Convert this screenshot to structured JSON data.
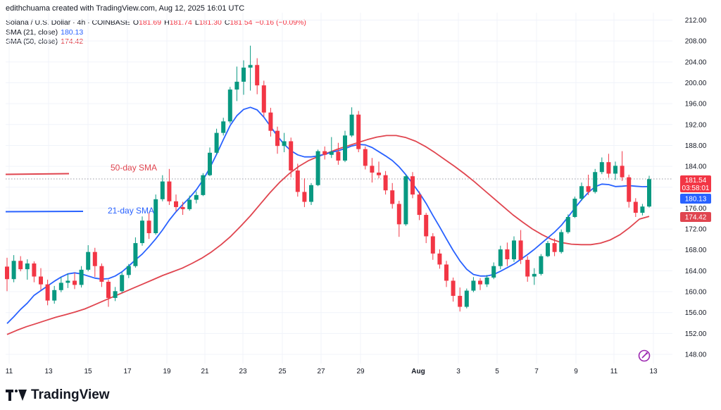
{
  "header": {
    "text": "edithchuama created with TradingView.com, Aug 12, 2025 16:01 UTC"
  },
  "legend": {
    "symbol": "Solana / U.S. Dollar · 4h · COINBASE",
    "o_label": "O",
    "o": "181.69",
    "h_label": "H",
    "h": "181.74",
    "l_label": "L",
    "l": "181.30",
    "c_label": "C",
    "c": "181.54",
    "change": "−0.16 (−0.09%)",
    "sma21_label": "SMA (21, close)",
    "sma21_value": "180.13",
    "sma50_label": "SMA (50, close)",
    "sma50_value": "174.42"
  },
  "annotations": {
    "sma50": "50-day SMA",
    "sma21": "21-day SMA"
  },
  "price_tags": {
    "last": "181.54",
    "countdown": "03:58:01",
    "sma21": "180.13",
    "sma50": "174.42"
  },
  "brand": {
    "name": "TradingView"
  },
  "colors": {
    "up": "#089981",
    "down": "#f23645",
    "sma21": "#2962ff",
    "sma50": "#e0454f",
    "grid": "#f0f3fa"
  },
  "chart_data": {
    "type": "candlestick",
    "symbol": "SOL/USD",
    "timeframe": "4h",
    "y_ticks": [
      148,
      152,
      156,
      160,
      164,
      168,
      172,
      176,
      180,
      184,
      188,
      192,
      196,
      200,
      204,
      208,
      212
    ],
    "x_ticks": [
      "11",
      "13",
      "15",
      "17",
      "19",
      "21",
      "23",
      "25",
      "27",
      "29",
      "Aug",
      "3",
      "5",
      "7",
      "9",
      "11",
      "13"
    ],
    "ylim": [
      145.5,
      214
    ],
    "grid": true,
    "last_price": 181.54,
    "candles": [
      [
        164.8,
        166.5,
        160.1,
        162.4
      ],
      [
        162.4,
        167,
        161.8,
        165.9
      ],
      [
        165.9,
        166.8,
        163.9,
        164.3
      ],
      [
        164.3,
        166.2,
        162.3,
        165.4
      ],
      [
        165.4,
        165.8,
        161.8,
        162.9
      ],
      [
        162.9,
        164.5,
        160.3,
        161.4
      ],
      [
        161.4,
        162.3,
        157.4,
        158.3
      ],
      [
        158.3,
        161.1,
        157.7,
        160.3
      ],
      [
        160.3,
        162.8,
        159.9,
        161.7
      ],
      [
        161.7,
        163.5,
        160.7,
        162.1
      ],
      [
        162.1,
        163.6,
        160.5,
        161.3
      ],
      [
        161.3,
        164.9,
        160.8,
        164.2
      ],
      [
        164.2,
        168.9,
        163.9,
        167.6
      ],
      [
        167.6,
        168.4,
        162.8,
        164.9
      ],
      [
        164.9,
        165.4,
        160.9,
        161.9
      ],
      [
        161.9,
        162.3,
        157.1,
        158.8
      ],
      [
        158.8,
        160.9,
        158.2,
        160.1
      ],
      [
        160.1,
        163.7,
        159.8,
        163.2
      ],
      [
        163.2,
        165.3,
        162.6,
        164.9
      ],
      [
        164.9,
        170.4,
        164.6,
        169.3
      ],
      [
        169.3,
        174.4,
        168.8,
        173.6
      ],
      [
        173.6,
        175.2,
        170.1,
        171.2
      ],
      [
        171.2,
        178.6,
        170.9,
        177.7
      ],
      [
        177.7,
        182.3,
        177.3,
        181.1
      ],
      [
        181.1,
        183.5,
        176.6,
        177.3
      ],
      [
        177.3,
        178.6,
        175.4,
        176.2
      ],
      [
        176.2,
        177.2,
        174.7,
        175.8
      ],
      [
        175.8,
        178.4,
        175.5,
        177.6
      ],
      [
        177.6,
        179.2,
        176.9,
        178.5
      ],
      [
        178.5,
        182.7,
        178.3,
        182.3
      ],
      [
        182.3,
        187.6,
        182.1,
        186.6
      ],
      [
        186.6,
        191.2,
        186.3,
        190.4
      ],
      [
        190.4,
        193.3,
        189.9,
        192.6
      ],
      [
        192.6,
        199.2,
        192.2,
        198.7
      ],
      [
        198.7,
        203.1,
        196.5,
        200.2
      ],
      [
        200.2,
        204.3,
        197.7,
        202.9
      ],
      [
        202.9,
        207.1,
        198.5,
        203.4
      ],
      [
        203.4,
        204.7,
        197.8,
        199.5
      ],
      [
        199.5,
        200.4,
        193.5,
        194.3
      ],
      [
        194.3,
        195.2,
        189.7,
        190.8
      ],
      [
        190.8,
        191.6,
        186.4,
        187.9
      ],
      [
        187.9,
        190.4,
        186.7,
        188.8
      ],
      [
        188.8,
        189.5,
        181.9,
        183.2
      ],
      [
        183.2,
        184.5,
        178.2,
        179.1
      ],
      [
        179.1,
        181.7,
        176.2,
        177.2
      ],
      [
        177.2,
        180.8,
        176.6,
        180.4
      ],
      [
        180.4,
        187.2,
        180.2,
        186.9
      ],
      [
        186.9,
        187.8,
        185.3,
        186.2
      ],
      [
        186.2,
        189.6,
        185.6,
        186.8
      ],
      [
        186.8,
        188.5,
        184.3,
        185.1
      ],
      [
        185.1,
        190.8,
        184.8,
        189.9
      ],
      [
        189.9,
        195.3,
        189.6,
        193.9
      ],
      [
        193.9,
        194.6,
        186.7,
        187.3
      ],
      [
        187.3,
        187.8,
        183.4,
        184.1
      ],
      [
        184.1,
        185.6,
        180.9,
        182.8
      ],
      [
        182.8,
        184.9,
        181.7,
        182.3
      ],
      [
        182.3,
        183.1,
        178.6,
        179.4
      ],
      [
        179.4,
        180.8,
        175.9,
        176.8
      ],
      [
        176.8,
        177.4,
        170.5,
        172.9
      ],
      [
        172.9,
        182.4,
        172.6,
        182.1
      ],
      [
        182.1,
        182.9,
        177.9,
        178.6
      ],
      [
        178.6,
        179.2,
        173.7,
        174.7
      ],
      [
        174.7,
        175.1,
        169.3,
        170.6
      ],
      [
        170.6,
        171.2,
        166.1,
        167.3
      ],
      [
        167.3,
        168.1,
        164.4,
        165.2
      ],
      [
        165.2,
        165.9,
        160.9,
        162.1
      ],
      [
        162.1,
        162.7,
        158.1,
        159.2
      ],
      [
        159.2,
        160.8,
        156.2,
        157.1
      ],
      [
        157.1,
        160.6,
        156.8,
        160.2
      ],
      [
        160.2,
        162.8,
        159.9,
        162.1
      ],
      [
        162.1,
        162.6,
        160.3,
        161.4
      ],
      [
        161.4,
        163.2,
        160.9,
        162.7
      ],
      [
        162.7,
        165.6,
        162.4,
        164.9
      ],
      [
        164.9,
        168.8,
        164.3,
        168.1
      ],
      [
        168.1,
        169.4,
        164.9,
        166.2
      ],
      [
        166.2,
        170.6,
        165.7,
        169.8
      ],
      [
        169.8,
        171.8,
        165.3,
        166.1
      ],
      [
        166.1,
        166.8,
        161.9,
        162.9
      ],
      [
        162.9,
        164.5,
        161.3,
        163.4
      ],
      [
        163.4,
        167.2,
        163.1,
        166.8
      ],
      [
        166.8,
        169.7,
        166.6,
        169.3
      ],
      [
        169.3,
        170.2,
        166.8,
        167.6
      ],
      [
        167.6,
        171.9,
        167.3,
        171.4
      ],
      [
        171.4,
        174.8,
        171.1,
        174.3
      ],
      [
        174.3,
        178.2,
        174.1,
        177.8
      ],
      [
        177.8,
        180.9,
        177.4,
        180.2
      ],
      [
        180.2,
        182.4,
        178.5,
        179.1
      ],
      [
        179.1,
        183.5,
        178.8,
        182.9
      ],
      [
        182.9,
        185.7,
        182.5,
        184.8
      ],
      [
        184.8,
        186.4,
        181.8,
        182.6
      ],
      [
        182.6,
        184.9,
        181.4,
        184.1
      ],
      [
        184.1,
        186.9,
        181.2,
        181.9
      ],
      [
        181.9,
        182.4,
        176.1,
        177.2
      ],
      [
        177.2,
        177.9,
        174.3,
        175.1
      ],
      [
        175.1,
        176.8,
        174.6,
        176.3
      ],
      [
        176.3,
        182.2,
        176.1,
        181.54
      ]
    ],
    "series": [
      {
        "name": "SMA (21, close)",
        "values": [
          153.9,
          155.2,
          156.6,
          157.8,
          159.3,
          160.2,
          161.1,
          162,
          162.8,
          163.4,
          163.6,
          163.4,
          163,
          162.6,
          162.4,
          162.5,
          163,
          163.8,
          164.9,
          166.1,
          167.2,
          168.6,
          170.1,
          171.8,
          173.7,
          175.3,
          176.7,
          178,
          179.5,
          181.4,
          183.7,
          186.3,
          189.1,
          191.8,
          193.7,
          194.9,
          195.3,
          194.8,
          193.4,
          191.6,
          189.8,
          188.2,
          187,
          186.2,
          185.8,
          185.8,
          186,
          186.3,
          186.7,
          187,
          187.4,
          187.9,
          188.2,
          188.1,
          187.6,
          186.8,
          186,
          185.1,
          183.9,
          182.4,
          180.7,
          178.9,
          176.9,
          174.6,
          172.4,
          170.1,
          167.9,
          165.9,
          164.3,
          163.3,
          163,
          163,
          163.3,
          163.9,
          164.6,
          165.3,
          166.2,
          167.1,
          168.1,
          169.2,
          170.3,
          171.4,
          172.7,
          174.3,
          176,
          177.6,
          179,
          180.1,
          180.6,
          180.5,
          180.13,
          180.2,
          180.3,
          180.2,
          180.1,
          180.13
        ]
      },
      {
        "name": "SMA (50, close)",
        "values": [
          151.8,
          152.6,
          153.3,
          153.9,
          154.5,
          155.1,
          155.6,
          156.1,
          156.7,
          157.5,
          158.3,
          159.1,
          159.9,
          160.7,
          161.5,
          162.3,
          163.1,
          163.8,
          164.5,
          165.4,
          166.4,
          167.6,
          169,
          170.6,
          172.5,
          174.5,
          176.7,
          178.9,
          180.9,
          182.6,
          184,
          185.1,
          185.9,
          186.6,
          187.3,
          187.9,
          188.5,
          189.1,
          189.6,
          189.9,
          189.9,
          189.5,
          188.8,
          187.8,
          186.6,
          185.3,
          184,
          182.6,
          181.1,
          179.5,
          177.9,
          176.3,
          174.7,
          173.3,
          172,
          170.9,
          170,
          169.4,
          169.1,
          169,
          169,
          169.3,
          169.9,
          170.9,
          172.3,
          173.9,
          174.42
        ]
      }
    ]
  }
}
